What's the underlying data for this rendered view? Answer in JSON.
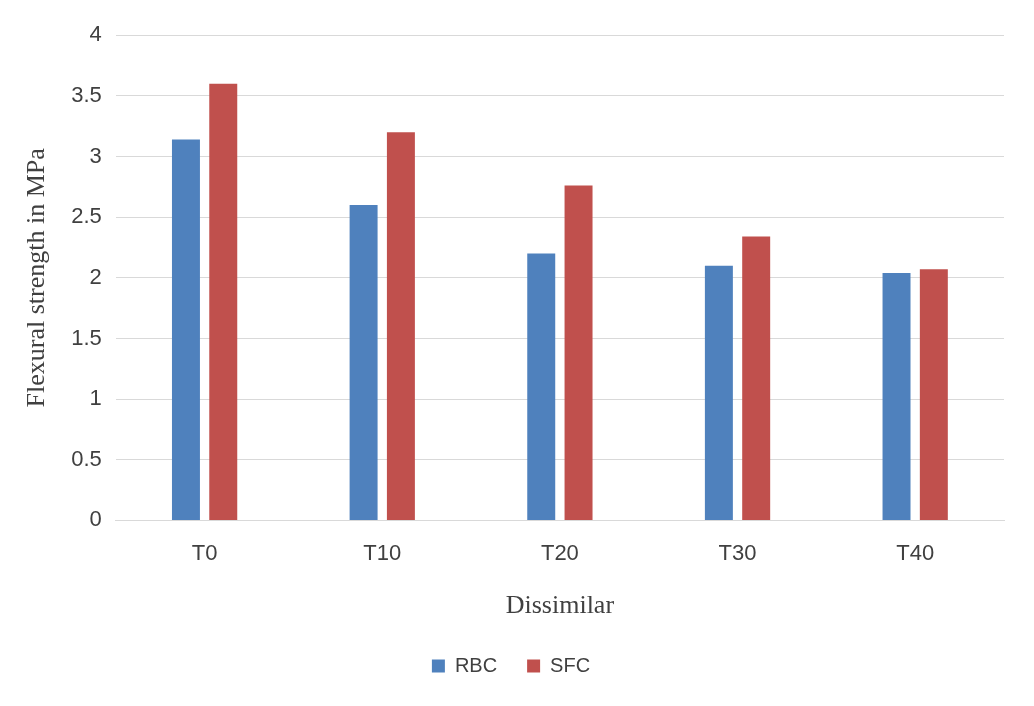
{
  "chart_data": {
    "type": "bar",
    "xlabel": "Dissimilar",
    "ylabel": "Flexural strength in MPa",
    "categories": [
      "T0",
      "T10",
      "T20",
      "T30",
      "T40"
    ],
    "series": [
      {
        "name": "RBC",
        "color": "#4f81bd",
        "values": [
          3.14,
          2.6,
          2.2,
          2.1,
          2.04
        ]
      },
      {
        "name": "SFC",
        "color": "#c0504d",
        "values": [
          3.6,
          3.2,
          2.76,
          2.34,
          2.07
        ]
      }
    ],
    "ylim": [
      0,
      4
    ],
    "yticks": [
      0,
      {
        "value": 0.5,
        "label": "0.5"
      },
      1,
      {
        "value": 1.5,
        "label": "1.5"
      },
      2,
      {
        "value": 2.5,
        "label": "2.5"
      },
      3,
      {
        "value": 3.5,
        "label": "3.5"
      },
      4
    ],
    "grid": "y",
    "legend": "bottom"
  }
}
